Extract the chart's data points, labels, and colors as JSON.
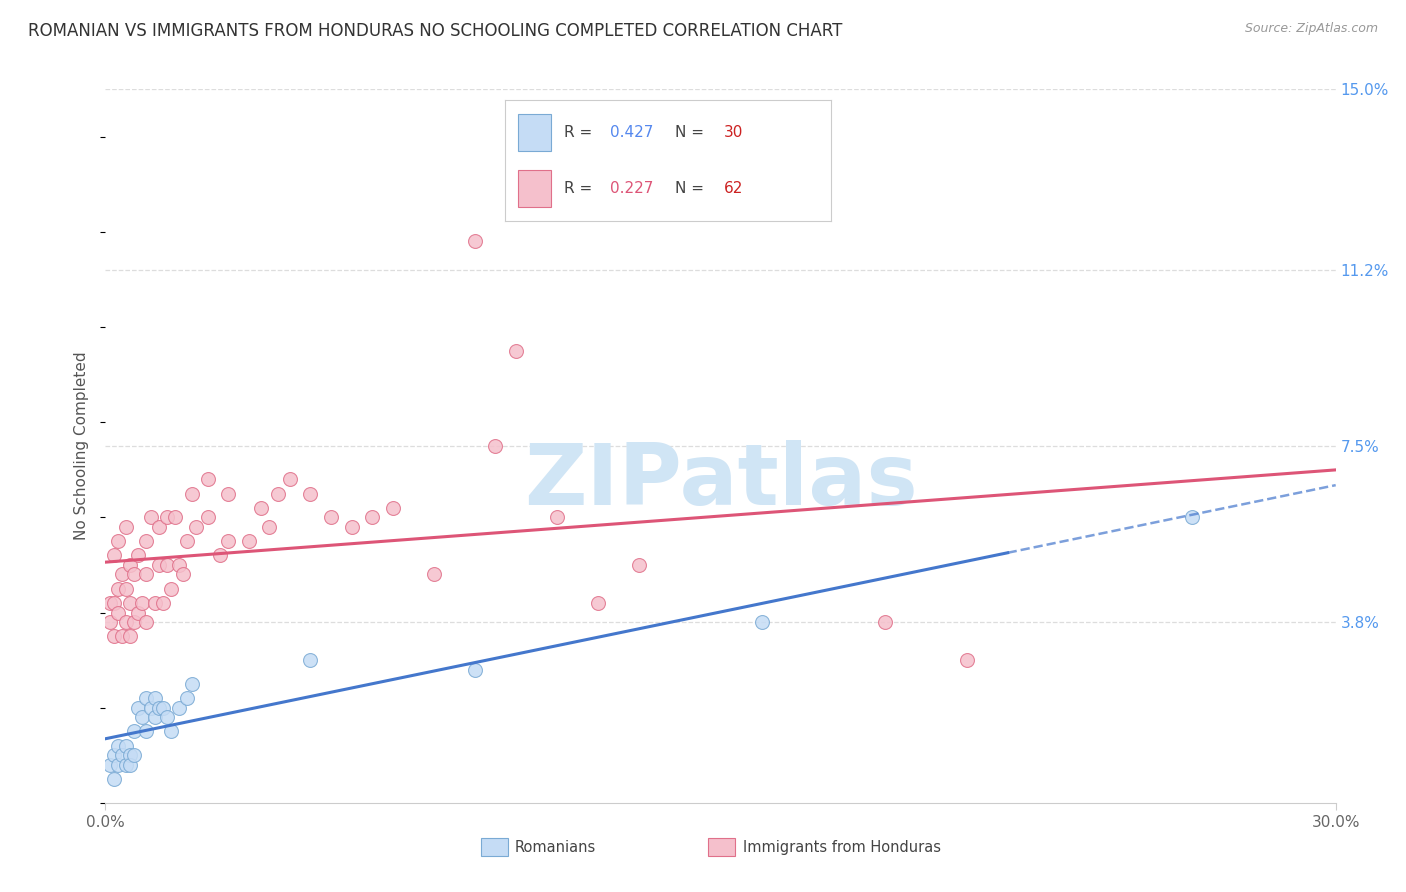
{
  "title": "ROMANIAN VS IMMIGRANTS FROM HONDURAS NO SCHOOLING COMPLETED CORRELATION CHART",
  "source": "Source: ZipAtlas.com",
  "ylabel": "No Schooling Completed",
  "xlim": [
    0.0,
    0.3
  ],
  "ylim": [
    0.0,
    0.15
  ],
  "xtick_positions": [
    0.0,
    0.3
  ],
  "xtick_labels": [
    "0.0%",
    "30.0%"
  ],
  "ytick_positions": [
    0.038,
    0.075,
    0.112,
    0.15
  ],
  "ytick_labels": [
    "3.8%",
    "7.5%",
    "11.2%",
    "15.0%"
  ],
  "romanian_fill": "#c5dcf5",
  "romanian_edge": "#7aaad4",
  "honduras_fill": "#f5c0cc",
  "honduras_edge": "#e0708a",
  "romanian_line": "#4477cc",
  "honduras_line": "#dd5577",
  "grid_color": "#dddddd",
  "watermark_color": "#d0e5f5",
  "romanians_x": [
    0.001,
    0.002,
    0.002,
    0.003,
    0.003,
    0.004,
    0.005,
    0.005,
    0.006,
    0.006,
    0.007,
    0.007,
    0.008,
    0.009,
    0.01,
    0.01,
    0.011,
    0.012,
    0.012,
    0.013,
    0.014,
    0.015,
    0.016,
    0.018,
    0.02,
    0.021,
    0.05,
    0.09,
    0.16,
    0.265
  ],
  "romanians_y": [
    0.008,
    0.01,
    0.005,
    0.008,
    0.012,
    0.01,
    0.008,
    0.012,
    0.01,
    0.008,
    0.01,
    0.015,
    0.02,
    0.018,
    0.015,
    0.022,
    0.02,
    0.018,
    0.022,
    0.02,
    0.02,
    0.018,
    0.015,
    0.02,
    0.022,
    0.025,
    0.03,
    0.028,
    0.038,
    0.06
  ],
  "honduras_x": [
    0.001,
    0.001,
    0.002,
    0.002,
    0.002,
    0.003,
    0.003,
    0.003,
    0.004,
    0.004,
    0.005,
    0.005,
    0.005,
    0.006,
    0.006,
    0.006,
    0.007,
    0.007,
    0.008,
    0.008,
    0.009,
    0.01,
    0.01,
    0.01,
    0.011,
    0.012,
    0.013,
    0.013,
    0.014,
    0.015,
    0.015,
    0.016,
    0.017,
    0.018,
    0.019,
    0.02,
    0.021,
    0.022,
    0.025,
    0.025,
    0.028,
    0.03,
    0.03,
    0.035,
    0.038,
    0.04,
    0.042,
    0.045,
    0.05,
    0.055,
    0.06,
    0.065,
    0.07,
    0.08,
    0.09,
    0.095,
    0.1,
    0.11,
    0.12,
    0.13,
    0.19,
    0.21
  ],
  "honduras_y": [
    0.038,
    0.042,
    0.035,
    0.042,
    0.052,
    0.04,
    0.045,
    0.055,
    0.035,
    0.048,
    0.038,
    0.045,
    0.058,
    0.035,
    0.042,
    0.05,
    0.038,
    0.048,
    0.04,
    0.052,
    0.042,
    0.038,
    0.048,
    0.055,
    0.06,
    0.042,
    0.05,
    0.058,
    0.042,
    0.05,
    0.06,
    0.045,
    0.06,
    0.05,
    0.048,
    0.055,
    0.065,
    0.058,
    0.06,
    0.068,
    0.052,
    0.055,
    0.065,
    0.055,
    0.062,
    0.058,
    0.065,
    0.068,
    0.065,
    0.06,
    0.058,
    0.06,
    0.062,
    0.048,
    0.118,
    0.075,
    0.095,
    0.06,
    0.042,
    0.05,
    0.038,
    0.03
  ],
  "romanians_R": "0.427",
  "romanians_N": "30",
  "honduras_R": "0.227",
  "honduras_N": "62"
}
